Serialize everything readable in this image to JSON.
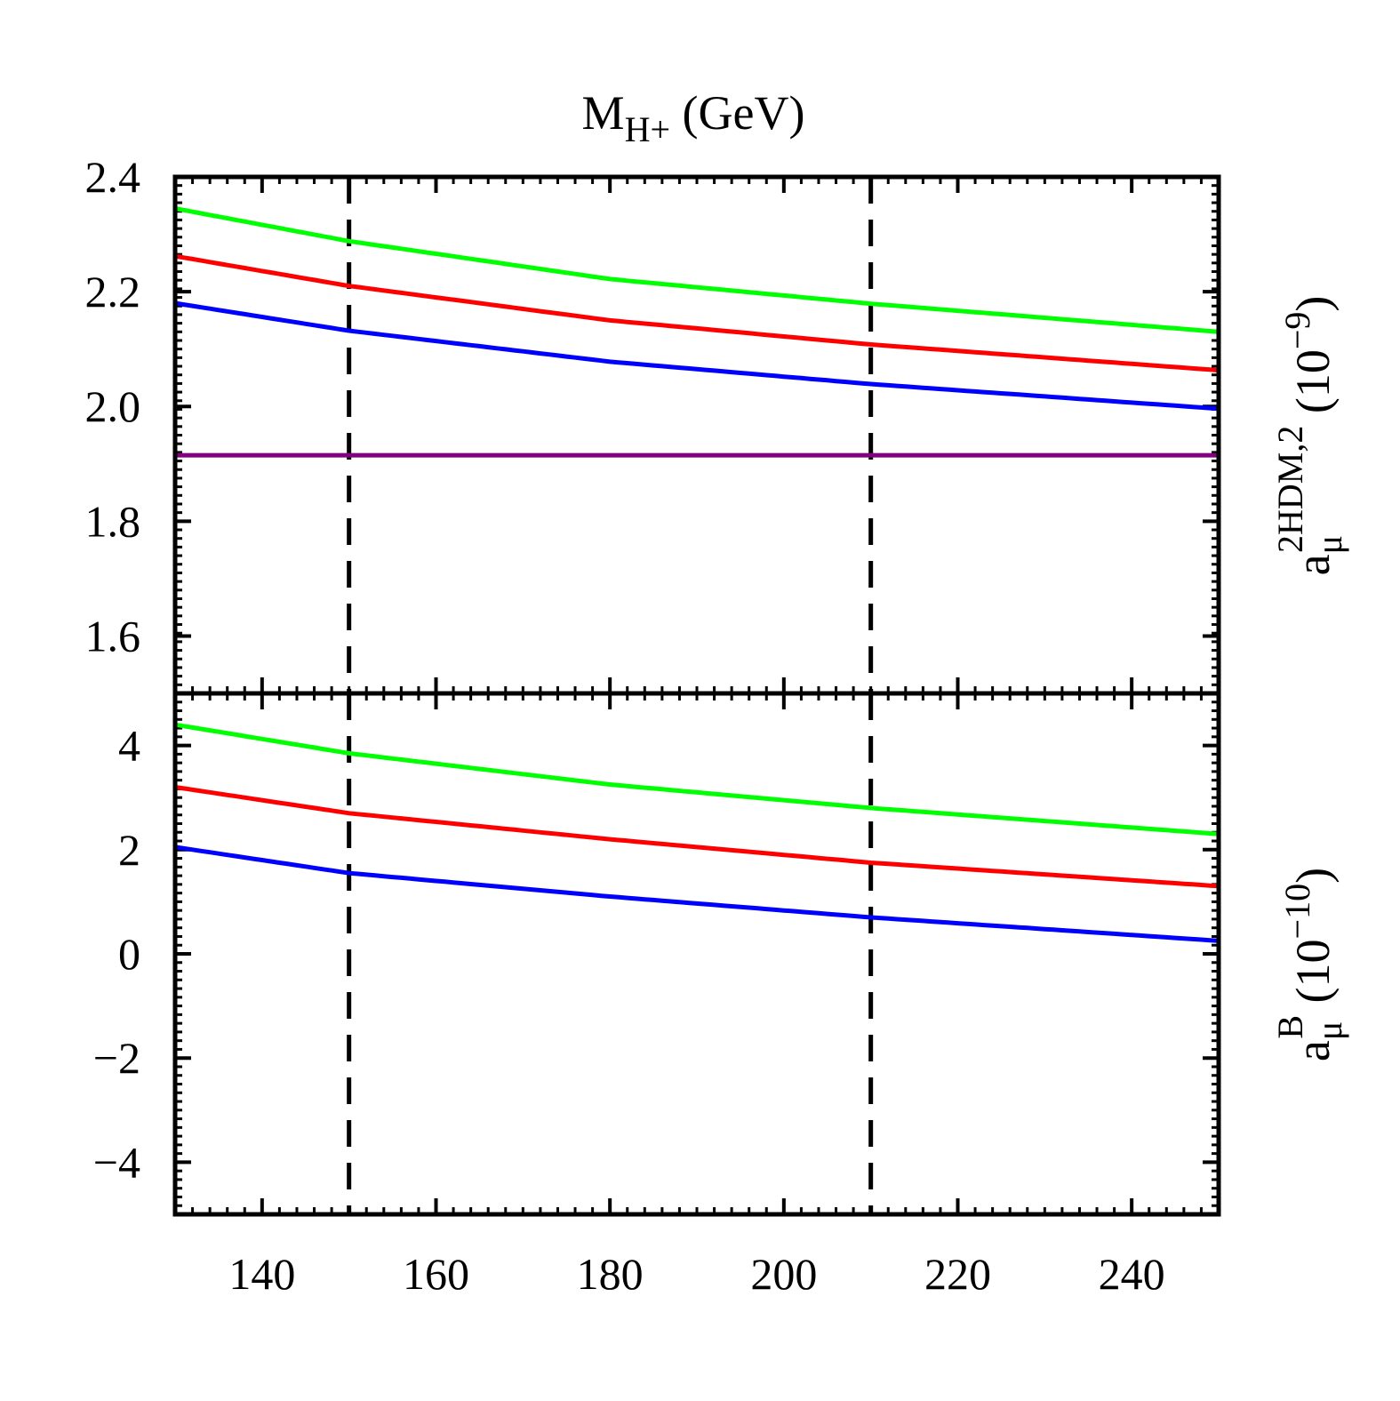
{
  "chart_data": [
    {
      "type": "line",
      "panel": "top",
      "x_title": {
        "main": "M",
        "sub": "H+",
        "rest": " (GeV)"
      },
      "y_title": {
        "main": "a",
        "sub": "μ",
        "sup": "2HDM,2",
        "rest": " (10",
        "exp": "−9",
        "close": ")"
      },
      "xlim": [
        130,
        250
      ],
      "ylim": [
        1.5,
        2.4
      ],
      "y_ticks": [
        1.6,
        1.8,
        2.0,
        2.2,
        2.4
      ],
      "y_tick_labels": [
        "1.6",
        "1.8",
        "2.0",
        "2.2",
        "2.4"
      ],
      "vlines": [
        150,
        210
      ],
      "series": [
        {
          "name": "green",
          "color": "#00ff00",
          "x": [
            130,
            150,
            180,
            210,
            250
          ],
          "y": [
            2.345,
            2.288,
            2.222,
            2.179,
            2.13
          ]
        },
        {
          "name": "red",
          "color": "#ff0000",
          "x": [
            130,
            150,
            180,
            210,
            250
          ],
          "y": [
            2.262,
            2.21,
            2.15,
            2.108,
            2.063
          ]
        },
        {
          "name": "blue",
          "color": "#0000ff",
          "x": [
            130,
            150,
            180,
            210,
            250
          ],
          "y": [
            2.18,
            2.132,
            2.078,
            2.039,
            1.996
          ]
        },
        {
          "name": "purple",
          "color": "#800080",
          "x": [
            130,
            250
          ],
          "y": [
            1.915,
            1.915
          ]
        }
      ]
    },
    {
      "type": "line",
      "panel": "bottom",
      "y_title": {
        "main": "a",
        "sub": "μ",
        "sup": "B",
        "rest": " (10",
        "exp": "−10",
        "close": ")"
      },
      "xlim": [
        130,
        250
      ],
      "ylim": [
        -5,
        5
      ],
      "x_ticks": [
        140,
        160,
        180,
        200,
        220,
        240
      ],
      "x_tick_labels": [
        "140",
        "160",
        "180",
        "200",
        "220",
        "240"
      ],
      "y_ticks": [
        -4,
        -2,
        0,
        2,
        4
      ],
      "y_tick_labels": [
        "−4",
        "−2",
        "0",
        "2",
        "4"
      ],
      "vlines": [
        150,
        210
      ],
      "series": [
        {
          "name": "green",
          "color": "#00ff00",
          "x": [
            130,
            150,
            180,
            210,
            250
          ],
          "y": [
            4.4,
            3.85,
            3.25,
            2.8,
            2.3
          ]
        },
        {
          "name": "red",
          "color": "#ff0000",
          "x": [
            130,
            150,
            180,
            210,
            250
          ],
          "y": [
            3.2,
            2.7,
            2.2,
            1.75,
            1.3
          ]
        },
        {
          "name": "blue",
          "color": "#0000ff",
          "x": [
            130,
            150,
            180,
            210,
            250
          ],
          "y": [
            2.05,
            1.55,
            1.1,
            0.7,
            0.25
          ]
        }
      ]
    }
  ]
}
